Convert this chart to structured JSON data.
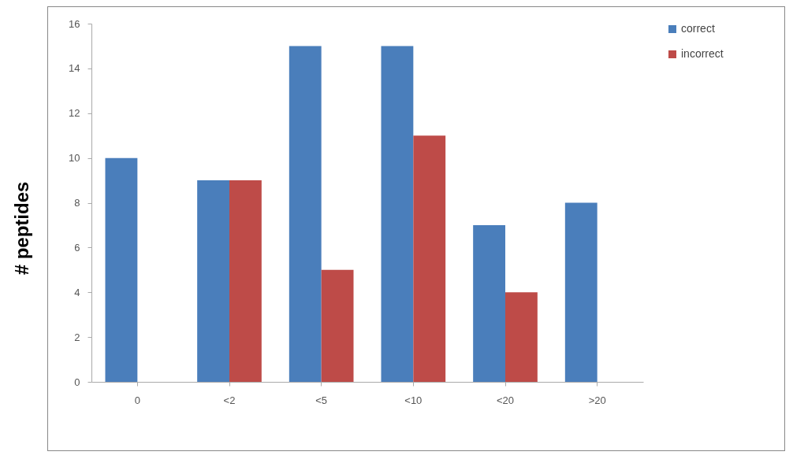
{
  "chart_data": {
    "type": "bar",
    "ylabel": "# peptides",
    "categories": [
      "0",
      "<2",
      "<5",
      "<10",
      "<20",
      ">20"
    ],
    "series": [
      {
        "name": "correct",
        "color": "#4a7ebb",
        "values": [
          10,
          9,
          15,
          15,
          7,
          8
        ]
      },
      {
        "name": "incorrect",
        "color": "#be4b48",
        "values": [
          0,
          9,
          5,
          11,
          4,
          0
        ]
      }
    ],
    "ylim": [
      0,
      16
    ],
    "yticks": [
      0,
      2,
      4,
      6,
      8,
      10,
      12,
      14,
      16
    ],
    "legend": "right"
  }
}
